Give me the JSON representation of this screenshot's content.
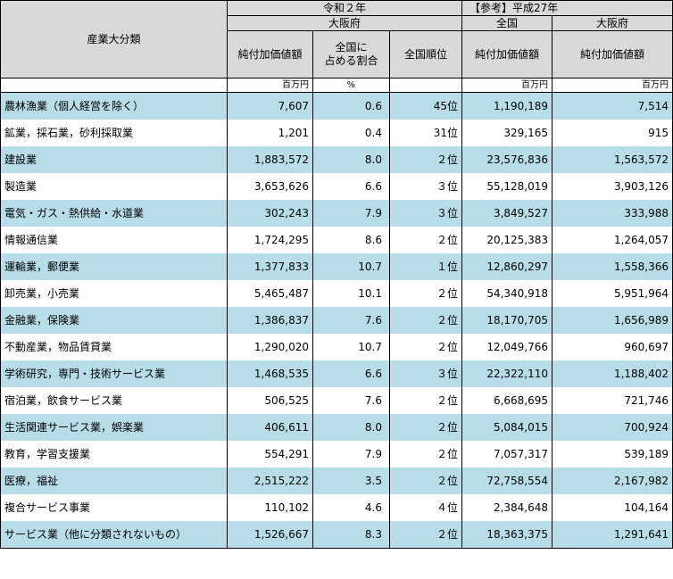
{
  "header": {
    "category_col": "産業大分類",
    "reiwa_group": "令和２年",
    "osaka_a": "大阪府",
    "zenkoku": "全国",
    "ref_group": "【参考】平成27年",
    "osaka_b": "大阪府",
    "net_value_a": "純付加価値額",
    "share_line1": "全国に",
    "share_line2": "占める割合",
    "national_rank": "全国順位",
    "net_value_nat": "純付加価値額",
    "net_value_ref": "純付加価値額"
  },
  "units": {
    "u1": "百万円",
    "u2": "%",
    "u3": "百万円",
    "u4": "百万円"
  },
  "rows": [
    {
      "name": "農林漁業（個人経営を除く）",
      "osaka": "7,607",
      "share": "0.6",
      "rank": "45位",
      "national": "1,190,189",
      "ref": "7,514"
    },
    {
      "name": "鉱業，採石業，砂利採取業",
      "osaka": "1,201",
      "share": "0.4",
      "rank": "31位",
      "national": "329,165",
      "ref": "915"
    },
    {
      "name": "建設業",
      "osaka": "1,883,572",
      "share": "8.0",
      "rank": "２位",
      "national": "23,576,836",
      "ref": "1,563,572"
    },
    {
      "name": "製造業",
      "osaka": "3,653,626",
      "share": "6.6",
      "rank": "３位",
      "national": "55,128,019",
      "ref": "3,903,126"
    },
    {
      "name": "電気・ガス・熱供給・水道業",
      "osaka": "302,243",
      "share": "7.9",
      "rank": "３位",
      "national": "3,849,527",
      "ref": "333,988"
    },
    {
      "name": "情報通信業",
      "osaka": "1,724,295",
      "share": "8.6",
      "rank": "２位",
      "national": "20,125,383",
      "ref": "1,264,057"
    },
    {
      "name": "運輸業，郵便業",
      "osaka": "1,377,833",
      "share": "10.7",
      "rank": "１位",
      "national": "12,860,297",
      "ref": "1,558,366"
    },
    {
      "name": "卸売業，小売業",
      "osaka": "5,465,487",
      "share": "10.1",
      "rank": "２位",
      "national": "54,340,918",
      "ref": "5,951,964"
    },
    {
      "name": "金融業，保険業",
      "osaka": "1,386,837",
      "share": "7.6",
      "rank": "２位",
      "national": "18,170,705",
      "ref": "1,656,989"
    },
    {
      "name": "不動産業，物品賃貸業",
      "osaka": "1,290,020",
      "share": "10.7",
      "rank": "２位",
      "national": "12,049,766",
      "ref": "960,697"
    },
    {
      "name": "学術研究，専門・技術サービス業",
      "osaka": "1,468,535",
      "share": "6.6",
      "rank": "３位",
      "national": "22,322,110",
      "ref": "1,188,402"
    },
    {
      "name": "宿泊業，飲食サービス業",
      "osaka": "506,525",
      "share": "7.6",
      "rank": "２位",
      "national": "6,668,695",
      "ref": "721,746"
    },
    {
      "name": "生活関連サービス業，娯楽業",
      "osaka": "406,611",
      "share": "8.0",
      "rank": "２位",
      "national": "5,084,015",
      "ref": "700,924"
    },
    {
      "name": "教育，学習支援業",
      "osaka": "554,291",
      "share": "7.9",
      "rank": "２位",
      "national": "7,057,317",
      "ref": "539,189"
    },
    {
      "name": "医療，福祉",
      "osaka": "2,515,222",
      "share": "3.5",
      "rank": "２位",
      "national": "72,758,554",
      "ref": "2,167,982"
    },
    {
      "name": "複合サービス事業",
      "osaka": "110,102",
      "share": "4.6",
      "rank": "４位",
      "national": "2,384,648",
      "ref": "104,164"
    },
    {
      "name": "サービス業（他に分類されないもの）",
      "osaka": "1,526,667",
      "share": "8.3",
      "rank": "２位",
      "national": "18,363,375",
      "ref": "1,291,641"
    }
  ],
  "colors": {
    "shade": "#b7dde8",
    "header": "#d9d9d9"
  }
}
